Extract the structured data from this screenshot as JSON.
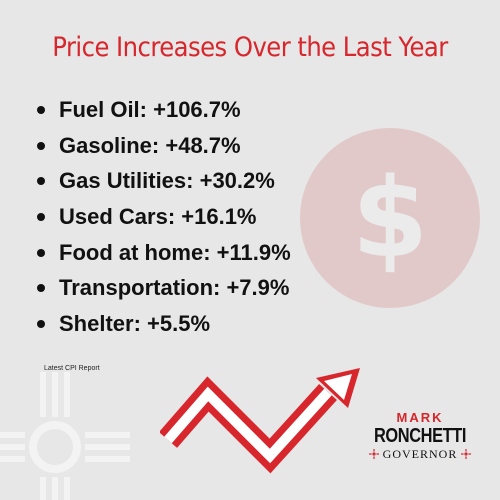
{
  "title": "Price Increases Over the Last Year",
  "items": [
    "Fuel Oil: +106.7%",
    "Gasoline: +48.7%",
    "Gas Utilities: +30.2%",
    "Used Cars: +16.1%",
    "Food at home: +11.9%",
    "Transportation: +7.9%",
    "Shelter: +5.5%"
  ],
  "source": "Latest CPI Report",
  "logo": {
    "first": "MARK",
    "last": "RONCHETTI",
    "office": "GOVERNOR"
  },
  "background_icons": [
    "dollar-coin-icon",
    "zia-sun-icon"
  ],
  "graphic": "trend-up-arrow-icon",
  "colors": {
    "accent": "#d7262c",
    "background": "#e7e7e7",
    "text": "#111111"
  }
}
